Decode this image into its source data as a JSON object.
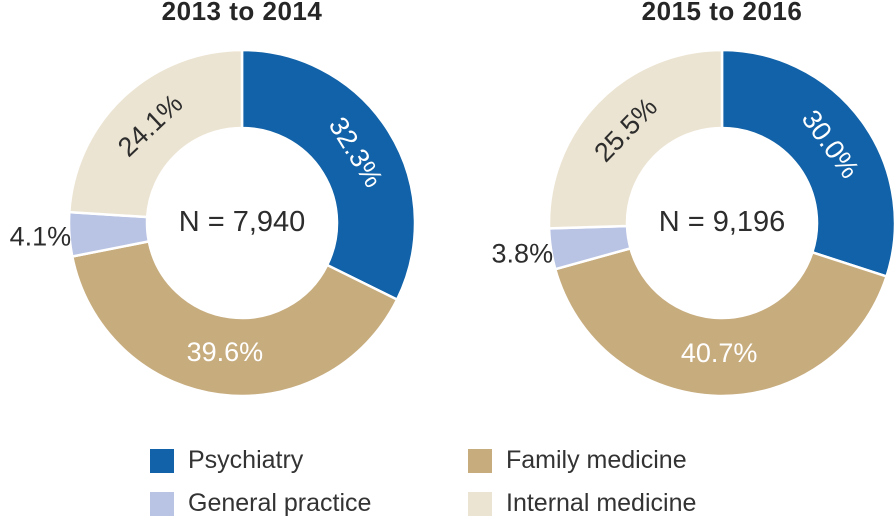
{
  "figure": {
    "kind": "paired donut charts",
    "background": "#ffffff"
  },
  "legend": {
    "items": [
      {
        "label": "Psychiatry",
        "color": "#1162a8"
      },
      {
        "label": "Family medicine",
        "color": "#c7ac7e"
      },
      {
        "label": "General practice",
        "color": "#b9c4e4"
      },
      {
        "label": "Internal medicine",
        "color": "#ece4d2"
      }
    ]
  },
  "chart_data": [
    {
      "type": "pie",
      "donut": true,
      "title": "2013 to 2014",
      "center_label": "N = 7,940",
      "categories": [
        "Psychiatry",
        "Family medicine",
        "General practice",
        "Internal medicine"
      ],
      "values": [
        32.3,
        39.6,
        4.1,
        24.1
      ],
      "labels": [
        "32.3%",
        "39.6%",
        "4.1%",
        "24.1%"
      ],
      "colors": [
        "#1162a8",
        "#c7ac7e",
        "#b9c4e4",
        "#ece4d2"
      ],
      "label_layout": [
        "rotated",
        "horizontal",
        "outside",
        "rotated"
      ],
      "label_colors": [
        "#ffffff",
        "#ffffff",
        "#2d2d2d",
        "#2d2d2d"
      ],
      "start_angle_deg": 0,
      "direction": "clockwise",
      "legend_position": "bottom"
    },
    {
      "type": "pie",
      "donut": true,
      "title": "2015 to 2016",
      "center_label": "N = 9,196",
      "categories": [
        "Psychiatry",
        "Family medicine",
        "General practice",
        "Internal medicine"
      ],
      "values": [
        30.0,
        40.7,
        3.8,
        25.5
      ],
      "labels": [
        "30.0%",
        "40.7%",
        "3.8%",
        "25.5%"
      ],
      "colors": [
        "#1162a8",
        "#c7ac7e",
        "#b9c4e4",
        "#ece4d2"
      ],
      "label_layout": [
        "rotated",
        "horizontal",
        "outside",
        "rotated"
      ],
      "label_colors": [
        "#ffffff",
        "#ffffff",
        "#2d2d2d",
        "#2d2d2d"
      ],
      "start_angle_deg": 0,
      "direction": "clockwise",
      "legend_position": "bottom"
    }
  ]
}
